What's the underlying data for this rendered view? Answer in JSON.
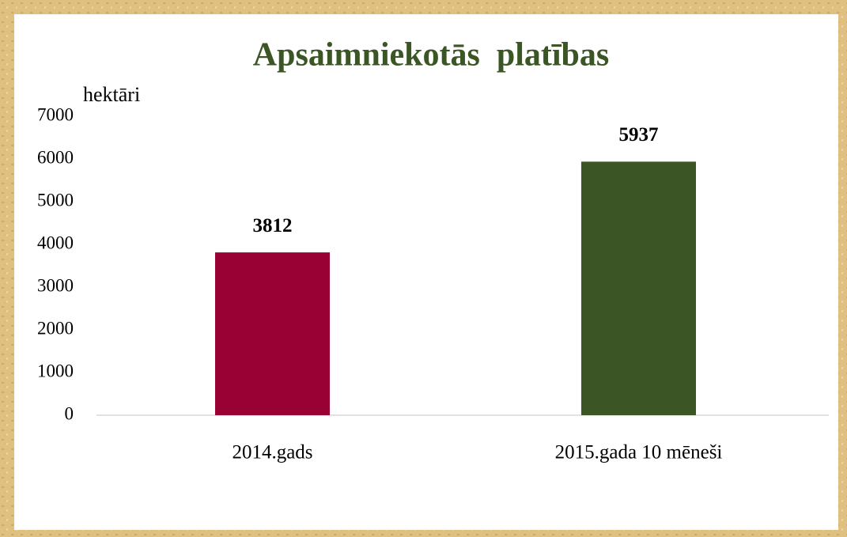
{
  "chart_data": {
    "type": "bar",
    "title": "Apsaimniekotās  platības",
    "y_label": "hektāri",
    "categories": [
      "2014.gads",
      "2015.gada 10 mēneši"
    ],
    "values": [
      3812,
      5937
    ],
    "colors": [
      "#990033",
      "#3b5624"
    ],
    "title_color": "#3b5624",
    "ylim": [
      0,
      7000
    ],
    "yticks": [
      0,
      1000,
      2000,
      3000,
      4000,
      5000,
      6000,
      7000
    ],
    "grid": false
  }
}
